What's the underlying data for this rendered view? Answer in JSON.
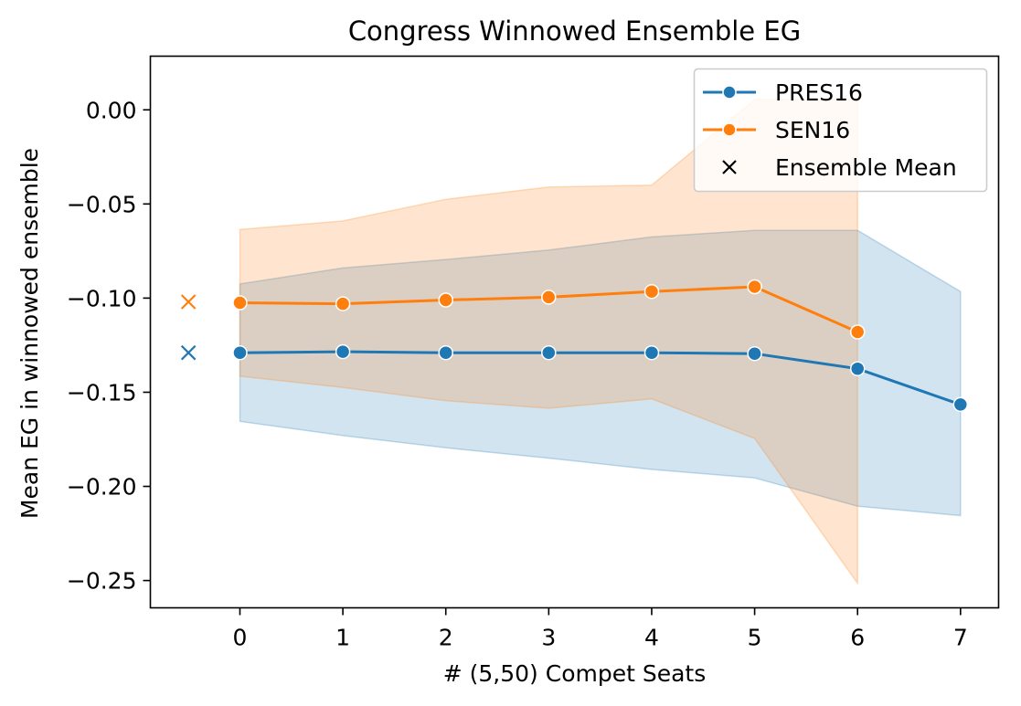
{
  "chart_data": {
    "type": "line",
    "title": "Congress Winnowed Ensemble EG",
    "xlabel": "# (5,50) Compet Seats",
    "ylabel": "Mean EG in winnowed ensemble",
    "xlim": [
      -0.87,
      7.37
    ],
    "ylim": [
      -0.2645,
      0.0285
    ],
    "xticks": [
      0,
      1,
      2,
      3,
      4,
      5,
      6,
      7
    ],
    "yticks": [
      0.0,
      -0.05,
      -0.1,
      -0.15,
      -0.2,
      -0.25
    ],
    "ytick_labels": [
      "0.00",
      "−0.05",
      "−0.10",
      "−0.15",
      "−0.20",
      "−0.25"
    ],
    "legend": {
      "placement": "top-right",
      "entries": [
        "PRES16",
        "SEN16",
        "Ensemble Mean"
      ]
    },
    "ensemble_mean": {
      "label": "Ensemble Mean",
      "x": -0.5,
      "points": [
        {
          "series": "PRES16",
          "y": -0.129,
          "color": "#1f77b4"
        },
        {
          "series": "SEN16",
          "y": -0.102,
          "color": "#ff7f0e"
        }
      ]
    },
    "series": [
      {
        "name": "PRES16",
        "color": "#1f77b4",
        "x": [
          0,
          1,
          2,
          3,
          4,
          5,
          6,
          7
        ],
        "y": [
          -0.129,
          -0.1285,
          -0.129,
          -0.129,
          -0.129,
          -0.1295,
          -0.1375,
          -0.1565
        ],
        "band_lower": [
          -0.1655,
          -0.173,
          -0.1795,
          -0.185,
          -0.191,
          -0.1955,
          -0.2105,
          -0.2155
        ],
        "band_upper": [
          -0.0925,
          -0.084,
          -0.0795,
          -0.0745,
          -0.0675,
          -0.064,
          -0.064,
          -0.0965
        ]
      },
      {
        "name": "SEN16",
        "color": "#ff7f0e",
        "x": [
          0,
          1,
          2,
          3,
          4,
          5,
          6
        ],
        "y": [
          -0.1025,
          -0.103,
          -0.101,
          -0.0995,
          -0.0965,
          -0.094,
          -0.118
        ],
        "band_lower": [
          -0.1415,
          -0.1475,
          -0.1545,
          -0.1585,
          -0.1535,
          -0.1745,
          -0.2515
        ],
        "band_upper": [
          -0.0635,
          -0.059,
          -0.0475,
          -0.041,
          -0.04,
          0.0055,
          0.0055
        ]
      }
    ]
  }
}
